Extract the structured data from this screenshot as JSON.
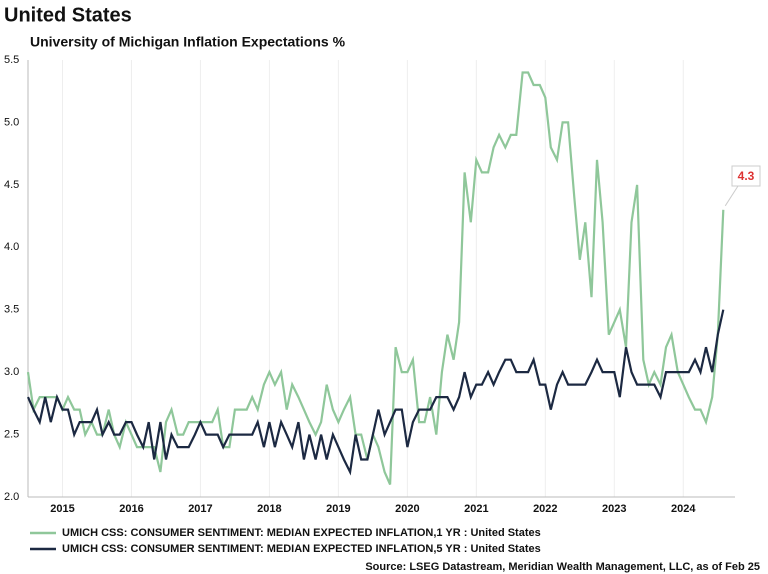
{
  "chart_data": {
    "type": "line",
    "title": "United States",
    "subtitle": "University of Michigan Inflation Expectations %",
    "source": "Source: LSEG Datastream, Meridian Wealth Management, LLC, as of Feb 25",
    "x": [
      2015.0,
      2015.08,
      2015.17,
      2015.25,
      2015.33,
      2015.42,
      2015.5,
      2015.58,
      2015.67,
      2015.75,
      2015.83,
      2015.92,
      2016.0,
      2016.08,
      2016.17,
      2016.25,
      2016.33,
      2016.42,
      2016.5,
      2016.58,
      2016.67,
      2016.75,
      2016.83,
      2016.92,
      2017.0,
      2017.08,
      2017.17,
      2017.25,
      2017.33,
      2017.42,
      2017.5,
      2017.58,
      2017.67,
      2017.75,
      2017.83,
      2017.92,
      2018.0,
      2018.08,
      2018.17,
      2018.25,
      2018.33,
      2018.42,
      2018.5,
      2018.58,
      2018.67,
      2018.75,
      2018.83,
      2018.92,
      2019.0,
      2019.08,
      2019.17,
      2019.25,
      2019.33,
      2019.42,
      2019.5,
      2019.58,
      2019.67,
      2019.75,
      2019.83,
      2019.92,
      2020.0,
      2020.08,
      2020.17,
      2020.25,
      2020.33,
      2020.42,
      2020.5,
      2020.58,
      2020.67,
      2020.75,
      2020.83,
      2020.92,
      2021.0,
      2021.08,
      2021.17,
      2021.25,
      2021.33,
      2021.42,
      2021.5,
      2021.58,
      2021.67,
      2021.75,
      2021.83,
      2021.92,
      2022.0,
      2022.08,
      2022.17,
      2022.25,
      2022.33,
      2022.42,
      2022.5,
      2022.58,
      2022.67,
      2022.75,
      2022.83,
      2022.92,
      2023.0,
      2023.08,
      2023.17,
      2023.25,
      2023.33,
      2023.42,
      2023.5,
      2023.58,
      2023.67,
      2023.75,
      2023.83,
      2023.92,
      2024.0,
      2024.08,
      2024.17,
      2024.25,
      2024.33,
      2024.42,
      2024.5,
      2024.58,
      2024.67,
      2024.75,
      2024.83,
      2024.92,
      2025.0,
      2025.08
    ],
    "series": [
      {
        "name": "UMICH CSS: CONSUMER SENTIMENT: MEDIAN EXPECTED INFLATION,1 YR : United States",
        "color": "#8fc79a",
        "values": [
          3.0,
          2.7,
          2.8,
          2.8,
          2.8,
          2.8,
          2.7,
          2.8,
          2.7,
          2.7,
          2.5,
          2.6,
          2.5,
          2.5,
          2.7,
          2.5,
          2.4,
          2.6,
          2.5,
          2.4,
          2.4,
          2.4,
          2.4,
          2.2,
          2.6,
          2.7,
          2.5,
          2.5,
          2.6,
          2.6,
          2.6,
          2.6,
          2.6,
          2.7,
          2.4,
          2.4,
          2.7,
          2.7,
          2.7,
          2.8,
          2.7,
          2.9,
          3.0,
          2.9,
          3.0,
          2.7,
          2.9,
          2.8,
          2.7,
          2.6,
          2.5,
          2.6,
          2.9,
          2.7,
          2.6,
          2.7,
          2.8,
          2.5,
          2.5,
          2.3,
          2.5,
          2.4,
          2.2,
          2.1,
          3.2,
          3.0,
          3.0,
          3.1,
          2.6,
          2.6,
          2.8,
          2.5,
          3.0,
          3.3,
          3.1,
          3.4,
          4.6,
          4.2,
          4.7,
          4.6,
          4.6,
          4.8,
          4.9,
          4.8,
          4.9,
          4.9,
          5.4,
          5.4,
          5.3,
          5.3,
          5.2,
          4.8,
          4.7,
          5.0,
          5.0,
          4.4,
          3.9,
          4.2,
          3.6,
          4.7,
          4.2,
          3.3,
          3.4,
          3.5,
          3.2,
          4.2,
          4.5,
          3.1,
          2.9,
          3.0,
          2.9,
          3.2,
          3.3,
          3.0,
          2.9,
          2.8,
          2.7,
          2.7,
          2.6,
          2.8,
          3.3,
          4.3
        ]
      },
      {
        "name": "UMICH CSS: CONSUMER SENTIMENT: MEDIAN EXPECTED INFLATION,5 YR : United States",
        "color": "#1c2942",
        "values": [
          2.8,
          2.7,
          2.6,
          2.8,
          2.6,
          2.8,
          2.7,
          2.7,
          2.5,
          2.6,
          2.6,
          2.6,
          2.7,
          2.5,
          2.6,
          2.5,
          2.5,
          2.6,
          2.6,
          2.5,
          2.4,
          2.6,
          2.3,
          2.6,
          2.3,
          2.5,
          2.4,
          2.4,
          2.4,
          2.5,
          2.6,
          2.5,
          2.5,
          2.5,
          2.4,
          2.5,
          2.5,
          2.5,
          2.5,
          2.5,
          2.6,
          2.4,
          2.6,
          2.4,
          2.6,
          2.5,
          2.4,
          2.6,
          2.3,
          2.5,
          2.3,
          2.5,
          2.3,
          2.5,
          2.4,
          2.3,
          2.2,
          2.5,
          2.3,
          2.3,
          2.5,
          2.7,
          2.5,
          2.6,
          2.7,
          2.7,
          2.4,
          2.6,
          2.7,
          2.7,
          2.7,
          2.8,
          2.8,
          2.8,
          2.7,
          2.8,
          3.0,
          2.8,
          2.9,
          2.9,
          3.0,
          2.9,
          3.0,
          3.1,
          3.1,
          3.0,
          3.0,
          3.0,
          3.1,
          2.9,
          2.9,
          2.7,
          2.9,
          3.0,
          2.9,
          2.9,
          2.9,
          2.9,
          3.0,
          3.1,
          3.0,
          3.0,
          3.0,
          2.8,
          3.2,
          3.0,
          2.9,
          2.9,
          2.9,
          2.9,
          2.8,
          3.0,
          3.0,
          3.0,
          3.0,
          3.0,
          3.1,
          3.0,
          3.2,
          3.0,
          3.3,
          3.5
        ]
      }
    ],
    "xlim": [
      2015.0,
      2025.25
    ],
    "xticks": [
      {
        "value": 2015.5,
        "label": "2015"
      },
      {
        "value": 2016.5,
        "label": "2016"
      },
      {
        "value": 2017.5,
        "label": "2017"
      },
      {
        "value": 2018.5,
        "label": "2018"
      },
      {
        "value": 2019.5,
        "label": "2019"
      },
      {
        "value": 2020.5,
        "label": "2020"
      },
      {
        "value": 2021.5,
        "label": "2021"
      },
      {
        "value": 2022.5,
        "label": "2022"
      },
      {
        "value": 2023.5,
        "label": "2023"
      },
      {
        "value": 2024.5,
        "label": "2024"
      }
    ],
    "ylim": [
      2.0,
      5.5
    ],
    "yticks": [
      {
        "value": 2.0,
        "label": "2.0"
      },
      {
        "value": 2.5,
        "label": "2.5"
      },
      {
        "value": 3.0,
        "label": "3.0"
      },
      {
        "value": 3.5,
        "label": "3.5"
      },
      {
        "value": 4.0,
        "label": "4.0"
      },
      {
        "value": 4.5,
        "label": "4.5"
      },
      {
        "value": 5.0,
        "label": "5.0"
      },
      {
        "value": 5.5,
        "label": "5.5"
      }
    ],
    "grid": true
  }
}
